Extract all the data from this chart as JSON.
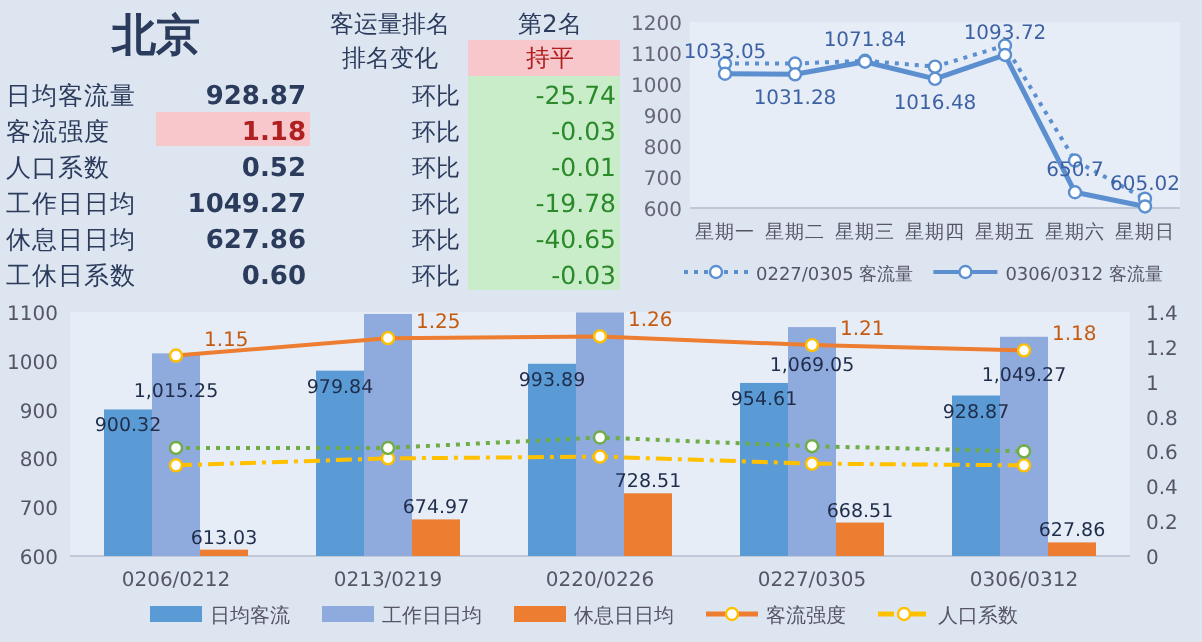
{
  "chart_data": [
    {
      "type": "other",
      "annotations": [
        "北京",
        "客运量排名",
        "第2名",
        "排名变化",
        "持平",
        "日均客流量",
        "928.87",
        "环比",
        "-25.74",
        "客流强度",
        "1.18",
        "环比",
        "-0.03",
        "人口系数",
        "0.52",
        "环比",
        "-0.01",
        "工作日日均",
        "1049.27",
        "环比",
        "-19.78",
        "休息日日均",
        "627.86",
        "环比",
        "-40.65",
        "工休日系数",
        "0.60",
        "环比",
        "-0.03"
      ]
    },
    {
      "type": "line",
      "categories": [
        "星期一",
        "星期二",
        "星期三",
        "星期四",
        "星期五",
        "星期六",
        "星期日"
      ],
      "ylim": [
        600,
        1200
      ],
      "yticks": [
        600,
        700,
        800,
        900,
        1000,
        1100,
        1200
      ],
      "legend": "bottom",
      "marker": "circle",
      "series": [
        {
          "name": "0227/0305 客流量",
          "color": "#5b8fd0",
          "line_style": "dotted",
          "values": [
            1066,
            1066,
            1075,
            1056,
            1124,
            753,
            630
          ]
        },
        {
          "name": "0306/0312 客流量",
          "color": "#5b8fd0",
          "line_style": "solid",
          "values": [
            1033.05,
            1031.28,
            1071.84,
            1016.48,
            1093.72,
            650.7,
            605.02
          ],
          "value_labels": [
            "1033.05",
            "1031.28",
            "1071.84",
            "1016.48",
            "1093.72",
            "650.7",
            "605.02"
          ]
        }
      ]
    },
    {
      "type": "bar",
      "categories": [
        "0206/0212",
        "0213/0219",
        "0220/0226",
        "0227/0305",
        "0306/0312"
      ],
      "ylim": [
        600,
        1100
      ],
      "yticks": [
        600,
        700,
        800,
        900,
        1000,
        1100
      ],
      "y2lim": [
        0,
        1.4
      ],
      "y2ticks": [
        0,
        0.2,
        0.4,
        0.6,
        0.8,
        1,
        1.2,
        1.4
      ],
      "legend": "bottom",
      "series": [
        {
          "name": "日均客流",
          "color": "#5b9bd5",
          "values": [
            900.32,
            979.84,
            993.89,
            954.61,
            928.87
          ],
          "value_labels": [
            "900.32",
            "979.84",
            "993.89",
            "954.61",
            "928.87"
          ]
        },
        {
          "name": "工作日日均",
          "color": "#8faadc",
          "values": [
            1015.25,
            1096,
            1099,
            1069.05,
            1049.27
          ],
          "value_labels": [
            "1,015.25",
            null,
            null,
            "1,069.05",
            "1,049.27"
          ]
        },
        {
          "name": "休息日日均",
          "color": "#ed7d31",
          "values": [
            613.03,
            674.97,
            728.51,
            668.51,
            627.86
          ],
          "value_labels": [
            "613.03",
            "674.97",
            "728.51",
            "668.51",
            "627.86"
          ]
        },
        {
          "name": "客流强度",
          "type": "line",
          "axis": "y2",
          "color": "#ed7d31",
          "marker": "circle",
          "line_style": "solid",
          "values": [
            1.15,
            1.25,
            1.26,
            1.21,
            1.18
          ],
          "value_labels": [
            "1.15",
            "1.25",
            "1.26",
            "1.21",
            "1.18"
          ]
        },
        {
          "name": "人口系数",
          "type": "line",
          "axis": "y2",
          "color": "#ffc000",
          "marker": "circle",
          "line_style": "dashed",
          "values": [
            0.52,
            0.56,
            0.57,
            0.53,
            0.52
          ]
        },
        {
          "type": "line",
          "axis": "y2",
          "color": "#70ad47",
          "marker": "circle",
          "line_style": "dotted",
          "values": [
            0.62,
            0.62,
            0.68,
            0.63,
            0.6
          ]
        }
      ]
    }
  ]
}
